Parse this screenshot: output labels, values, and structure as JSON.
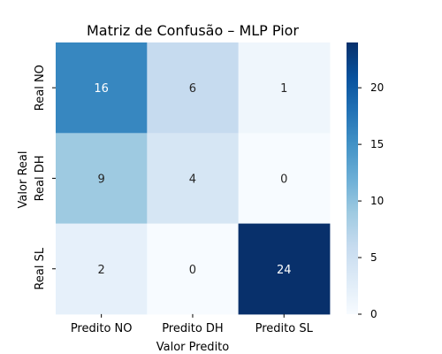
{
  "chart_data": {
    "type": "heatmap",
    "title": "Matriz de Confusão – MLP Pior",
    "xlabel": "Valor Predito",
    "ylabel": "Valor Real",
    "x_categories": [
      "Predito NO",
      "Predito DH",
      "Predito SL"
    ],
    "y_categories": [
      "Real NO",
      "Real DH",
      "Real SL"
    ],
    "values": [
      [
        16,
        6,
        1
      ],
      [
        9,
        4,
        0
      ],
      [
        2,
        0,
        24
      ]
    ],
    "colormap": "Blues",
    "vmin": 0,
    "vmax": 24,
    "colorbar_ticks": [
      0,
      5,
      10,
      15,
      20
    ]
  }
}
